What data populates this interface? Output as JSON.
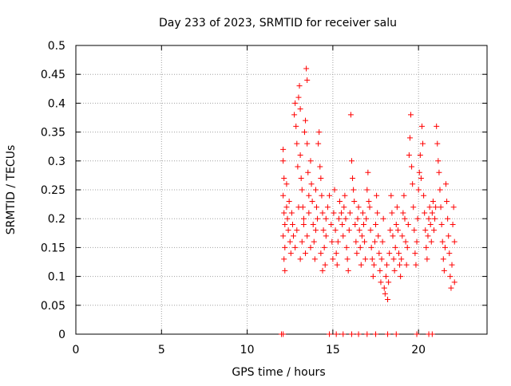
{
  "chart_data": {
    "type": "scatter",
    "title": "Day 233 of 2023, SRMTID for receiver salu",
    "xlabel": "GPS time / hours",
    "ylabel": "SRMTID / TECUs",
    "xlim": [
      0,
      24
    ],
    "ylim": [
      0,
      0.5
    ],
    "xticks": [
      0,
      5,
      10,
      15,
      20
    ],
    "xtick_labels": [
      "0",
      "5",
      "10",
      "15",
      "20"
    ],
    "yticks": [
      0,
      0.05,
      0.1,
      0.15,
      0.2,
      0.25,
      0.3,
      0.35,
      0.4,
      0.45,
      0.5
    ],
    "ytick_labels": [
      "0",
      "0.05",
      "0.1",
      "0.15",
      "0.2",
      "0.25",
      "0.3",
      "0.35",
      "0.4",
      "0.45",
      "0.5"
    ],
    "grid": true,
    "marker": "+",
    "series_color": "#ff0000",
    "series": [
      {
        "name": "SRMTID",
        "points": [
          [
            12.0,
            0.0
          ],
          [
            12.1,
            0.0
          ],
          [
            14.8,
            0.0
          ],
          [
            15.2,
            0.0
          ],
          [
            15.6,
            0.0
          ],
          [
            16.1,
            0.0
          ],
          [
            16.5,
            0.0
          ],
          [
            17.0,
            0.0
          ],
          [
            17.5,
            0.0
          ],
          [
            18.2,
            0.0
          ],
          [
            18.7,
            0.0
          ],
          [
            19.9,
            0.0
          ],
          [
            20.6,
            0.0
          ],
          [
            20.8,
            0.0
          ],
          [
            12.1,
            0.32
          ],
          [
            12.1,
            0.3
          ],
          [
            12.15,
            0.27
          ],
          [
            12.1,
            0.24
          ],
          [
            12.15,
            0.21
          ],
          [
            12.2,
            0.19
          ],
          [
            12.1,
            0.17
          ],
          [
            12.2,
            0.15
          ],
          [
            12.15,
            0.13
          ],
          [
            12.2,
            0.11
          ],
          [
            12.3,
            0.26
          ],
          [
            12.3,
            0.22
          ],
          [
            12.35,
            0.2
          ],
          [
            12.4,
            0.18
          ],
          [
            12.45,
            0.23
          ],
          [
            12.5,
            0.16
          ],
          [
            12.55,
            0.14
          ],
          [
            12.6,
            0.21
          ],
          [
            12.65,
            0.19
          ],
          [
            12.7,
            0.17
          ],
          [
            12.75,
            0.38
          ],
          [
            12.8,
            0.4
          ],
          [
            12.85,
            0.36
          ],
          [
            12.9,
            0.33
          ],
          [
            12.95,
            0.29
          ],
          [
            13.0,
            0.41
          ],
          [
            13.05,
            0.43
          ],
          [
            13.1,
            0.39
          ],
          [
            13.1,
            0.31
          ],
          [
            13.15,
            0.27
          ],
          [
            13.2,
            0.25
          ],
          [
            13.25,
            0.22
          ],
          [
            13.3,
            0.2
          ],
          [
            13.35,
            0.35
          ],
          [
            13.4,
            0.37
          ],
          [
            13.45,
            0.46
          ],
          [
            13.5,
            0.44
          ],
          [
            13.5,
            0.33
          ],
          [
            13.55,
            0.28
          ],
          [
            13.6,
            0.24
          ],
          [
            12.8,
            0.15
          ],
          [
            12.9,
            0.18
          ],
          [
            13.0,
            0.22
          ],
          [
            13.1,
            0.13
          ],
          [
            13.2,
            0.16
          ],
          [
            13.3,
            0.19
          ],
          [
            13.4,
            0.14
          ],
          [
            13.5,
            0.17
          ],
          [
            13.6,
            0.21
          ],
          [
            13.7,
            0.15
          ],
          [
            13.7,
            0.3
          ],
          [
            13.75,
            0.26
          ],
          [
            13.8,
            0.23
          ],
          [
            13.85,
            0.19
          ],
          [
            13.9,
            0.16
          ],
          [
            13.95,
            0.13
          ],
          [
            14.0,
            0.18
          ],
          [
            14.0,
            0.25
          ],
          [
            14.05,
            0.22
          ],
          [
            14.1,
            0.2
          ],
          [
            14.15,
            0.33
          ],
          [
            14.2,
            0.35
          ],
          [
            14.25,
            0.29
          ],
          [
            14.3,
            0.27
          ],
          [
            14.35,
            0.24
          ],
          [
            14.4,
            0.21
          ],
          [
            14.45,
            0.18
          ],
          [
            14.5,
            0.15
          ],
          [
            14.55,
            0.12
          ],
          [
            14.6,
            0.17
          ],
          [
            14.3,
            0.14
          ],
          [
            14.4,
            0.11
          ],
          [
            14.6,
            0.2
          ],
          [
            14.7,
            0.22
          ],
          [
            14.8,
            0.24
          ],
          [
            14.9,
            0.19
          ],
          [
            14.95,
            0.16
          ],
          [
            15.0,
            0.13
          ],
          [
            15.05,
            0.21
          ],
          [
            15.1,
            0.25
          ],
          [
            15.15,
            0.18
          ],
          [
            15.2,
            0.14
          ],
          [
            15.25,
            0.12
          ],
          [
            15.3,
            0.16
          ],
          [
            15.35,
            0.2
          ],
          [
            15.4,
            0.23
          ],
          [
            15.5,
            0.21
          ],
          [
            15.55,
            0.19
          ],
          [
            15.6,
            0.17
          ],
          [
            15.65,
            0.22
          ],
          [
            15.7,
            0.24
          ],
          [
            15.75,
            0.2
          ],
          [
            15.8,
            0.15
          ],
          [
            15.85,
            0.13
          ],
          [
            15.9,
            0.11
          ],
          [
            15.95,
            0.18
          ],
          [
            16.0,
            0.21
          ],
          [
            16.05,
            0.38
          ],
          [
            16.1,
            0.3
          ],
          [
            16.15,
            0.27
          ],
          [
            16.2,
            0.25
          ],
          [
            16.25,
            0.23
          ],
          [
            16.3,
            0.19
          ],
          [
            16.35,
            0.16
          ],
          [
            16.4,
            0.14
          ],
          [
            16.45,
            0.2
          ],
          [
            16.5,
            0.22
          ],
          [
            16.55,
            0.18
          ],
          [
            16.6,
            0.15
          ],
          [
            16.65,
            0.12
          ],
          [
            16.7,
            0.17
          ],
          [
            16.75,
            0.21
          ],
          [
            16.8,
            0.19
          ],
          [
            16.85,
            0.16
          ],
          [
            16.9,
            0.13
          ],
          [
            16.95,
            0.2
          ],
          [
            17.0,
            0.25
          ],
          [
            17.05,
            0.28
          ],
          [
            17.1,
            0.23
          ],
          [
            17.15,
            0.22
          ],
          [
            17.2,
            0.18
          ],
          [
            17.25,
            0.15
          ],
          [
            17.3,
            0.13
          ],
          [
            17.35,
            0.1
          ],
          [
            17.4,
            0.12
          ],
          [
            17.45,
            0.16
          ],
          [
            17.5,
            0.19
          ],
          [
            17.55,
            0.24
          ],
          [
            17.6,
            0.21
          ],
          [
            17.65,
            0.17
          ],
          [
            17.7,
            0.14
          ],
          [
            17.75,
            0.11
          ],
          [
            17.8,
            0.09
          ],
          [
            17.85,
            0.13
          ],
          [
            17.9,
            0.16
          ],
          [
            17.95,
            0.2
          ],
          [
            18.0,
            0.08
          ],
          [
            18.05,
            0.07
          ],
          [
            18.1,
            0.1
          ],
          [
            18.15,
            0.12
          ],
          [
            18.2,
            0.06
          ],
          [
            18.25,
            0.09
          ],
          [
            18.3,
            0.14
          ],
          [
            18.35,
            0.18
          ],
          [
            18.4,
            0.24
          ],
          [
            18.45,
            0.21
          ],
          [
            18.5,
            0.17
          ],
          [
            18.55,
            0.13
          ],
          [
            18.6,
            0.11
          ],
          [
            18.65,
            0.15
          ],
          [
            18.7,
            0.19
          ],
          [
            18.75,
            0.22
          ],
          [
            18.8,
            0.18
          ],
          [
            18.85,
            0.14
          ],
          [
            18.9,
            0.12
          ],
          [
            18.95,
            0.1
          ],
          [
            19.0,
            0.13
          ],
          [
            19.05,
            0.17
          ],
          [
            19.1,
            0.21
          ],
          [
            19.15,
            0.24
          ],
          [
            19.2,
            0.2
          ],
          [
            19.25,
            0.16
          ],
          [
            19.3,
            0.12
          ],
          [
            19.35,
            0.15
          ],
          [
            19.4,
            0.19
          ],
          [
            19.45,
            0.31
          ],
          [
            19.5,
            0.34
          ],
          [
            19.55,
            0.38
          ],
          [
            19.6,
            0.29
          ],
          [
            19.65,
            0.26
          ],
          [
            19.7,
            0.22
          ],
          [
            19.75,
            0.18
          ],
          [
            19.8,
            0.14
          ],
          [
            19.85,
            0.12
          ],
          [
            19.9,
            0.16
          ],
          [
            19.95,
            0.2
          ],
          [
            20.0,
            0.25
          ],
          [
            20.05,
            0.28
          ],
          [
            20.1,
            0.31
          ],
          [
            20.15,
            0.27
          ],
          [
            20.2,
            0.36
          ],
          [
            20.25,
            0.33
          ],
          [
            20.3,
            0.24
          ],
          [
            20.35,
            0.21
          ],
          [
            20.4,
            0.18
          ],
          [
            20.45,
            0.15
          ],
          [
            20.5,
            0.13
          ],
          [
            20.55,
            0.17
          ],
          [
            20.6,
            0.2
          ],
          [
            20.65,
            0.22
          ],
          [
            20.7,
            0.19
          ],
          [
            20.75,
            0.16
          ],
          [
            20.8,
            0.21
          ],
          [
            20.85,
            0.23
          ],
          [
            20.9,
            0.18
          ],
          [
            20.95,
            0.2
          ],
          [
            21.0,
            0.22
          ],
          [
            21.05,
            0.36
          ],
          [
            21.1,
            0.33
          ],
          [
            21.15,
            0.3
          ],
          [
            21.2,
            0.28
          ],
          [
            21.25,
            0.25
          ],
          [
            21.3,
            0.22
          ],
          [
            21.35,
            0.19
          ],
          [
            21.4,
            0.16
          ],
          [
            21.45,
            0.13
          ],
          [
            21.5,
            0.11
          ],
          [
            21.55,
            0.15
          ],
          [
            21.6,
            0.26
          ],
          [
            21.65,
            0.23
          ],
          [
            21.7,
            0.2
          ],
          [
            21.75,
            0.17
          ],
          [
            21.8,
            0.14
          ],
          [
            21.85,
            0.1
          ],
          [
            21.9,
            0.08
          ],
          [
            21.95,
            0.12
          ],
          [
            22.0,
            0.19
          ],
          [
            22.05,
            0.22
          ],
          [
            22.1,
            0.16
          ],
          [
            22.1,
            0.09
          ]
        ]
      }
    ]
  }
}
